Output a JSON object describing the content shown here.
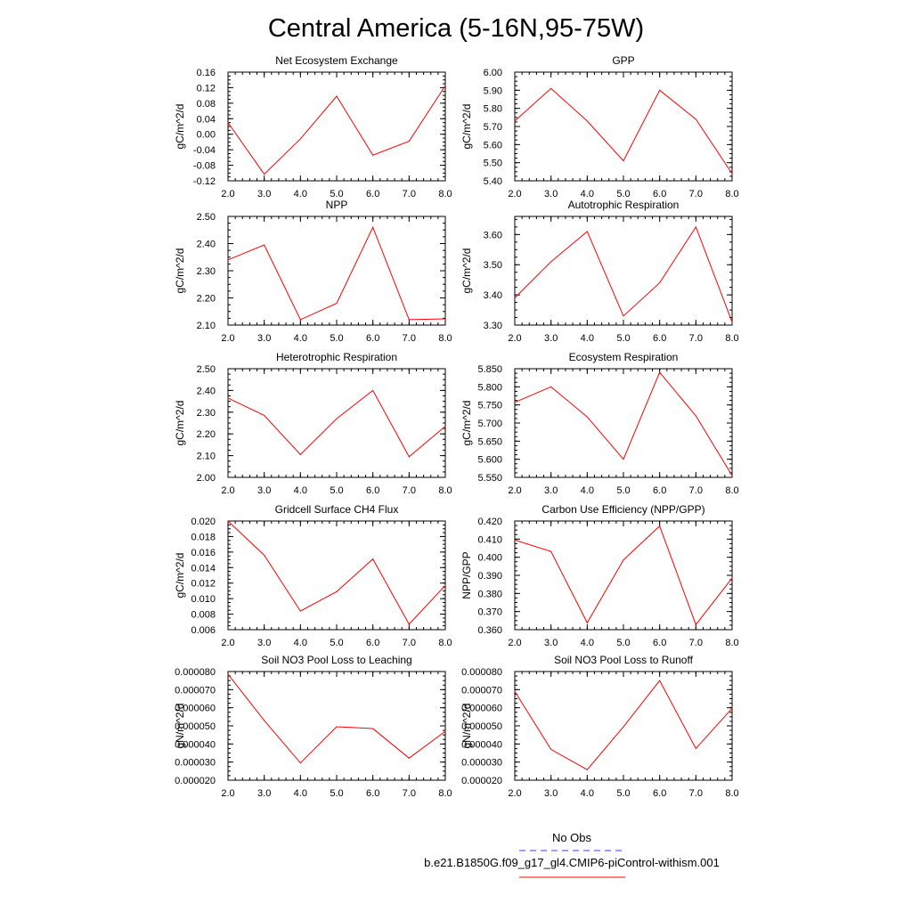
{
  "title": "Central America (5-16N,95-75W)",
  "legend": {
    "obs_label": "No Obs",
    "obs_color": "#3a3aff",
    "case_label": "b.e21.B1850G.f09_g17_gl4.CMIP6-piControl-withism.001",
    "case_color": "#ff0000"
  },
  "chart_data": [
    {
      "type": "line",
      "title": "Net Ecosystem Exchange",
      "ylabel": "gC/m^2/d",
      "x": [
        2,
        3,
        4,
        5,
        6,
        7,
        8
      ],
      "xticks": [
        "2.0",
        "3.0",
        "4.0",
        "5.0",
        "6.0",
        "7.0",
        "8.0"
      ],
      "xlim": [
        2,
        8
      ],
      "yticks": [
        "0.16",
        "0.12",
        "0.08",
        "0.04",
        "0.00",
        "-0.04",
        "-0.08",
        "-0.12"
      ],
      "ylim": [
        -0.12,
        0.16
      ],
      "series": [
        {
          "values": [
            0.03,
            -0.103,
            -0.012,
            0.098,
            -0.054,
            -0.018,
            0.125
          ],
          "color": "#ff0000"
        }
      ]
    },
    {
      "type": "line",
      "title": "GPP",
      "ylabel": "gC/m^2/d",
      "x": [
        2,
        3,
        4,
        5,
        6,
        7,
        8
      ],
      "xticks": [
        "2.0",
        "3.0",
        "4.0",
        "5.0",
        "6.0",
        "7.0",
        "8.0"
      ],
      "xlim": [
        2,
        8
      ],
      "yticks": [
        "6.00",
        "5.90",
        "5.80",
        "5.70",
        "5.60",
        "5.50",
        "5.40"
      ],
      "ylim": [
        5.4,
        6.0
      ],
      "series": [
        {
          "values": [
            5.73,
            5.91,
            5.73,
            5.51,
            5.9,
            5.74,
            5.44
          ],
          "color": "#ff0000"
        }
      ]
    },
    {
      "type": "line",
      "title": "NPP",
      "ylabel": "gC/m^2/d",
      "x": [
        2,
        3,
        4,
        5,
        6,
        7,
        8
      ],
      "xticks": [
        "2.0",
        "3.0",
        "4.0",
        "5.0",
        "6.0",
        "7.0",
        "8.0"
      ],
      "xlim": [
        2,
        8
      ],
      "yticks": [
        "2.50",
        "2.40",
        "2.30",
        "2.20",
        "2.10"
      ],
      "ylim": [
        2.1,
        2.5
      ],
      "series": [
        {
          "values": [
            2.34,
            2.395,
            2.12,
            2.18,
            2.46,
            2.12,
            2.123
          ],
          "color": "#ff0000"
        }
      ]
    },
    {
      "type": "line",
      "title": "Autotrophic Respiration",
      "ylabel": "gC/m^2/d",
      "x": [
        2,
        3,
        4,
        5,
        6,
        7,
        8
      ],
      "xticks": [
        "2.0",
        "3.0",
        "4.0",
        "5.0",
        "6.0",
        "7.0",
        "8.0"
      ],
      "xlim": [
        2,
        8
      ],
      "yticks": [
        "3.60",
        "3.50",
        "3.40",
        "3.30"
      ],
      "ylim": [
        3.3,
        3.66
      ],
      "series": [
        {
          "values": [
            3.39,
            3.51,
            3.61,
            3.33,
            3.44,
            3.625,
            3.31
          ],
          "color": "#ff0000"
        }
      ]
    },
    {
      "type": "line",
      "title": "Heterotrophic Respiration",
      "ylabel": "gC/m^2/d",
      "x": [
        2,
        3,
        4,
        5,
        6,
        7,
        8
      ],
      "xticks": [
        "2.0",
        "3.0",
        "4.0",
        "5.0",
        "6.0",
        "7.0",
        "8.0"
      ],
      "xlim": [
        2,
        8
      ],
      "yticks": [
        "2.50",
        "2.40",
        "2.30",
        "2.20",
        "2.10",
        "2.00"
      ],
      "ylim": [
        2.0,
        2.5
      ],
      "series": [
        {
          "values": [
            2.365,
            2.285,
            2.105,
            2.27,
            2.4,
            2.095,
            2.235
          ],
          "color": "#ff0000"
        }
      ]
    },
    {
      "type": "line",
      "title": "Ecosystem Respiration",
      "ylabel": "gC/m^2/d",
      "x": [
        2,
        3,
        4,
        5,
        6,
        7,
        8
      ],
      "xticks": [
        "2.0",
        "3.0",
        "4.0",
        "5.0",
        "6.0",
        "7.0",
        "8.0"
      ],
      "xlim": [
        2,
        8
      ],
      "yticks": [
        "5.850",
        "5.800",
        "5.750",
        "5.700",
        "5.650",
        "5.600",
        "5.550"
      ],
      "ylim": [
        5.55,
        5.85
      ],
      "series": [
        {
          "values": [
            5.757,
            5.8,
            5.717,
            5.6,
            5.84,
            5.72,
            5.555
          ],
          "color": "#ff0000"
        }
      ]
    },
    {
      "type": "line",
      "title": "Gridcell Surface CH4 Flux",
      "ylabel": "gC/m^2/d",
      "x": [
        2,
        3,
        4,
        5,
        6,
        7,
        8
      ],
      "xticks": [
        "2.0",
        "3.0",
        "4.0",
        "5.0",
        "6.0",
        "7.0",
        "8.0"
      ],
      "xlim": [
        2,
        8
      ],
      "yticks": [
        "0.020",
        "0.018",
        "0.016",
        "0.014",
        "0.012",
        "0.010",
        "0.008",
        "0.006"
      ],
      "ylim": [
        0.006,
        0.02
      ],
      "series": [
        {
          "values": [
            0.02,
            0.0156,
            0.0084,
            0.0109,
            0.0151,
            0.0067,
            0.0117
          ],
          "color": "#ff0000"
        }
      ]
    },
    {
      "type": "line",
      "title": "Carbon Use Efficiency (NPP/GPP)",
      "ylabel": "NPP/GPP",
      "x": [
        2,
        3,
        4,
        5,
        6,
        7,
        8
      ],
      "xticks": [
        "2.0",
        "3.0",
        "4.0",
        "5.0",
        "6.0",
        "7.0",
        "8.0"
      ],
      "xlim": [
        2,
        8
      ],
      "yticks": [
        "0.420",
        "0.410",
        "0.400",
        "0.390",
        "0.380",
        "0.370",
        "0.360"
      ],
      "ylim": [
        0.36,
        0.42
      ],
      "series": [
        {
          "values": [
            0.4095,
            0.4032,
            0.3638,
            0.3985,
            0.4172,
            0.3628,
            0.3885
          ],
          "color": "#ff0000"
        }
      ]
    },
    {
      "type": "line",
      "title": "Soil NO3 Pool Loss to Leaching",
      "ylabel": "gN/m^2/d",
      "x": [
        2,
        3,
        4,
        5,
        6,
        7,
        8
      ],
      "xticks": [
        "2.0",
        "3.0",
        "4.0",
        "5.0",
        "6.0",
        "7.0",
        "8.0"
      ],
      "xlim": [
        2,
        8
      ],
      "yticks": [
        "0.000080",
        "0.000070",
        "0.000060",
        "0.000050",
        "0.000040",
        "0.000030",
        "0.000020"
      ],
      "ylim": [
        2e-05,
        8e-05
      ],
      "series": [
        {
          "values": [
            7.85e-05,
            5.3e-05,
            2.95e-05,
            4.95e-05,
            4.85e-05,
            3.22e-05,
            4.7e-05
          ],
          "color": "#ff0000"
        }
      ]
    },
    {
      "type": "line",
      "title": "Soil NO3 Pool Loss to Runoff",
      "ylabel": "gN/m^2/d",
      "x": [
        2,
        3,
        4,
        5,
        6,
        7,
        8
      ],
      "xticks": [
        "2.0",
        "3.0",
        "4.0",
        "5.0",
        "6.0",
        "7.0",
        "8.0"
      ],
      "xlim": [
        2,
        8
      ],
      "yticks": [
        "0.000080",
        "0.000070",
        "0.000060",
        "0.000050",
        "0.000040",
        "0.000030",
        "0.000020"
      ],
      "ylim": [
        2e-05,
        8e-05
      ],
      "series": [
        {
          "values": [
            6.9e-05,
            3.7e-05,
            2.58e-05,
            4.95e-05,
            7.5e-05,
            3.75e-05,
            5.97e-05
          ],
          "color": "#ff0000"
        }
      ]
    }
  ]
}
